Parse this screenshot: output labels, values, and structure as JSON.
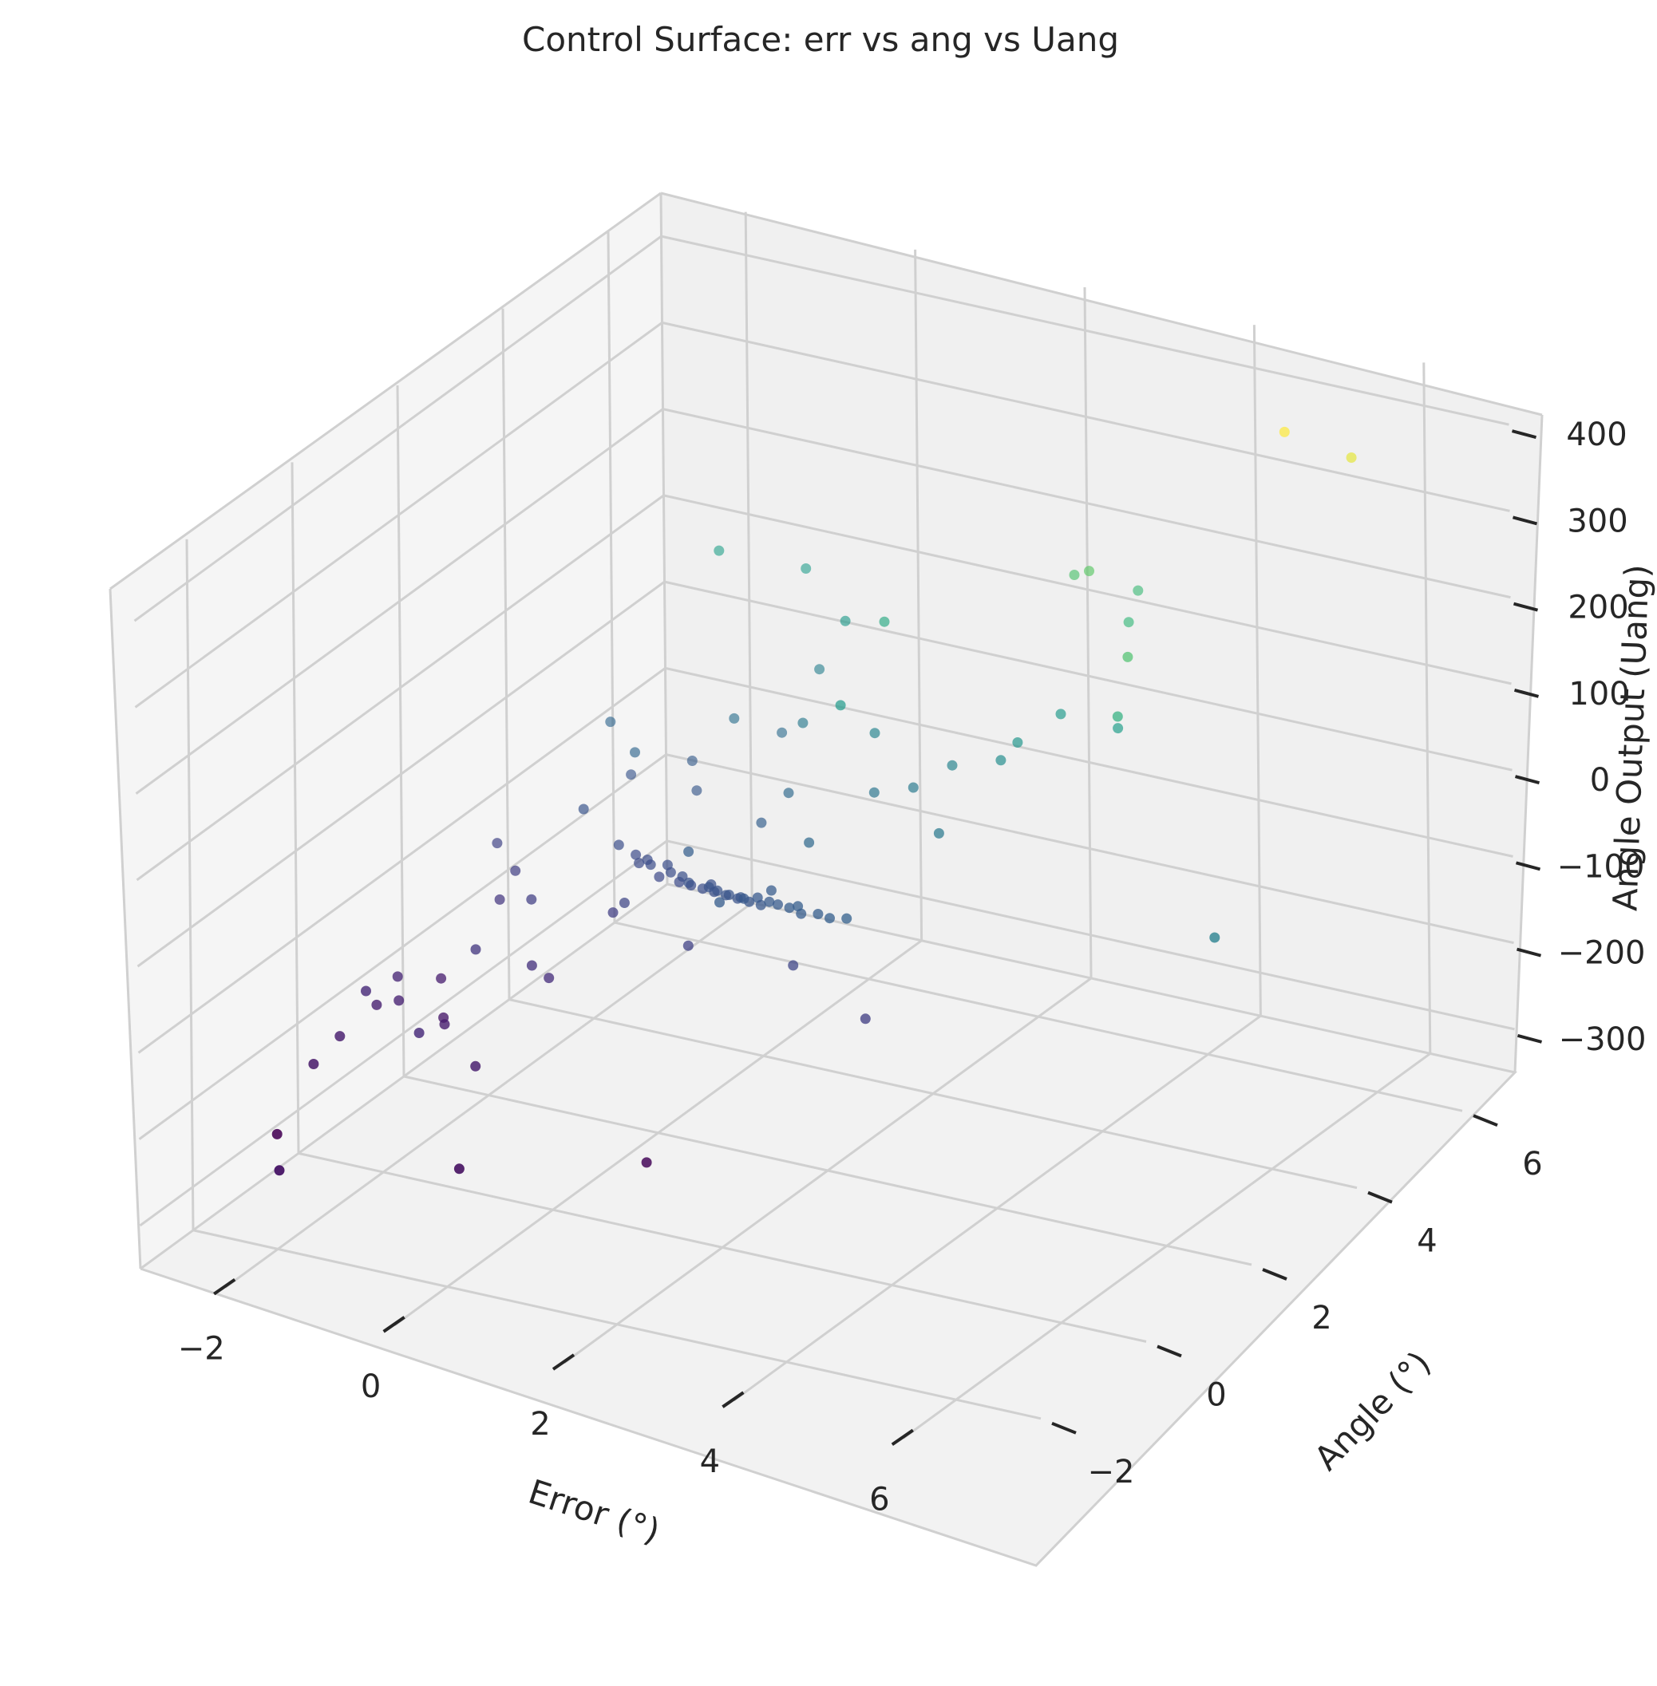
{
  "chart_data": {
    "type": "scatter3d",
    "title": "Control Surface: err vs ang vs Uang",
    "xlabel": "Error (°)",
    "ylabel": "Angle (°)",
    "zlabel": "Angle Output (Uang)",
    "xlim": [
      -3,
      7
    ],
    "ylim": [
      -3,
      7
    ],
    "zlim": [
      -350,
      450
    ],
    "x_ticks": [
      "−2",
      "0",
      "2",
      "4",
      "6"
    ],
    "y_ticks": [
      "−2",
      "0",
      "2",
      "4",
      "6"
    ],
    "z_ticks": [
      "−300",
      "−200",
      "−100",
      "0",
      "100",
      "200",
      "300",
      "400"
    ],
    "colormap": "viridis",
    "grid": true,
    "points": [
      {
        "x": 5.6,
        "y": 5.0,
        "z": 450
      },
      {
        "x": 6.2,
        "y": 5.3,
        "z": 420
      },
      {
        "x": 3.1,
        "y": 5.0,
        "z": 230
      },
      {
        "x": 3.4,
        "y": 4.8,
        "z": 250
      },
      {
        "x": 4.6,
        "y": 3.6,
        "z": 230
      },
      {
        "x": 3.6,
        "y": 5.4,
        "z": 205
      },
      {
        "x": 3.8,
        "y": 4.9,
        "z": 195
      },
      {
        "x": 4.6,
        "y": 3.4,
        "z": 170
      },
      {
        "x": 1.1,
        "y": 4.6,
        "z": 150
      },
      {
        "x": -1.6,
        "y": 5.8,
        "z": 120
      },
      {
        "x": 1.2,
        "y": 3.6,
        "z": 100
      },
      {
        "x": -0.7,
        "y": 6.0,
        "z": 110
      },
      {
        "x": 0.2,
        "y": 5.3,
        "z": 100
      },
      {
        "x": 4.1,
        "y": 4.2,
        "z": 110
      },
      {
        "x": 3.3,
        "y": 4.4,
        "z": 100
      },
      {
        "x": 3.1,
        "y": 3.9,
        "z": 85
      },
      {
        "x": 6.6,
        "y": 2.0,
        "z": 20
      },
      {
        "x": 2.9,
        "y": 3.9,
        "z": 60
      },
      {
        "x": 2.2,
        "y": 4.1,
        "z": 30
      },
      {
        "x": 1.1,
        "y": 4.4,
        "z": 30
      },
      {
        "x": -0.3,
        "y": 5.6,
        "z": 20
      },
      {
        "x": 0.0,
        "y": 4.8,
        "z": 0
      },
      {
        "x": 1.8,
        "y": 4.0,
        "z": 0
      },
      {
        "x": 2.6,
        "y": 3.2,
        "z": 0
      },
      {
        "x": 1.4,
        "y": 3.9,
        "z": -10
      },
      {
        "x": -1.0,
        "y": 5.1,
        "z": -30
      },
      {
        "x": 0.2,
        "y": 4.2,
        "z": -50
      },
      {
        "x": -0.5,
        "y": 5.2,
        "z": -40
      },
      {
        "x": 1.0,
        "y": 3.3,
        "z": -50
      },
      {
        "x": -1.5,
        "y": 5.1,
        "z": -90
      },
      {
        "x": 0.0,
        "y": 4.0,
        "z": -80
      },
      {
        "x": -1.8,
        "y": 4.5,
        "z": -60
      },
      {
        "x": -2.4,
        "y": 5.0,
        "z": -60
      },
      {
        "x": -2.1,
        "y": 4.9,
        "z": -110
      },
      {
        "x": -1.2,
        "y": 4.7,
        "z": -100
      },
      {
        "x": -0.3,
        "y": 3.1,
        "z": -80
      },
      {
        "x": 0.5,
        "y": 2.4,
        "z": -90
      },
      {
        "x": 1.3,
        "y": 2.5,
        "z": -150
      },
      {
        "x": 2.4,
        "y": 2.1,
        "z": -170
      },
      {
        "x": 0.0,
        "y": 2.6,
        "z": -160
      },
      {
        "x": -1.2,
        "y": 3.1,
        "z": -170
      },
      {
        "x": -2.1,
        "y": 4.0,
        "z": -110
      },
      {
        "x": -1.0,
        "y": 3.0,
        "z": -150
      },
      {
        "x": -2.6,
        "y": 3.5,
        "z": -170
      },
      {
        "x": -2.1,
        "y": 3.0,
        "z": -170
      },
      {
        "x": -3.0,
        "y": 3.8,
        "z": -160
      },
      {
        "x": -2.6,
        "y": 3.2,
        "z": -190
      },
      {
        "x": -1.6,
        "y": 2.2,
        "z": -200
      },
      {
        "x": -1.4,
        "y": 2.2,
        "z": -210
      },
      {
        "x": -2.2,
        "y": 2.1,
        "z": -190
      },
      {
        "x": -2.8,
        "y": 2.4,
        "z": -250
      },
      {
        "x": -2.4,
        "y": 1.8,
        "z": -260
      },
      {
        "x": -2.2,
        "y": 1.5,
        "z": -250
      },
      {
        "x": -3.0,
        "y": 1.9,
        "z": -230
      },
      {
        "x": -2.8,
        "y": 1.6,
        "z": -240
      },
      {
        "x": -3.0,
        "y": 1.5,
        "z": -245
      },
      {
        "x": -3.0,
        "y": 1.3,
        "z": -220
      },
      {
        "x": -2.0,
        "y": 0.7,
        "z": -220
      },
      {
        "x": -1.4,
        "y": 0.8,
        "z": -250
      },
      {
        "x": -3.0,
        "y": 0.3,
        "z": -260
      },
      {
        "x": -3.0,
        "y": 0.8,
        "z": -250
      },
      {
        "x": -3.0,
        "y": -0.4,
        "z": -310
      },
      {
        "x": -2.1,
        "y": -1.8,
        "z": -270
      },
      {
        "x": -0.6,
        "y": -0.8,
        "z": -280
      },
      {
        "x": 0.8,
        "y": 0.5,
        "z": -300
      },
      {
        "x": -1.5,
        "y": 3.7,
        "z": -125
      },
      {
        "x": -1.2,
        "y": 3.6,
        "z": -135
      },
      {
        "x": -0.9,
        "y": 3.5,
        "z": -140
      },
      {
        "x": -0.6,
        "y": 3.4,
        "z": -135
      },
      {
        "x": -0.4,
        "y": 3.3,
        "z": -130
      },
      {
        "x": -0.2,
        "y": 3.2,
        "z": -125
      },
      {
        "x": 0.0,
        "y": 3.1,
        "z": -120
      },
      {
        "x": 0.2,
        "y": 3.0,
        "z": -115
      },
      {
        "x": 0.4,
        "y": 2.9,
        "z": -110
      },
      {
        "x": 0.6,
        "y": 2.8,
        "z": -105
      },
      {
        "x": 0.8,
        "y": 2.7,
        "z": -100
      },
      {
        "x": 1.0,
        "y": 2.7,
        "z": -95
      },
      {
        "x": 1.2,
        "y": 2.6,
        "z": -90
      },
      {
        "x": -1.3,
        "y": 3.7,
        "z": -132
      },
      {
        "x": -1.0,
        "y": 3.5,
        "z": -128
      },
      {
        "x": -0.7,
        "y": 3.4,
        "z": -126
      },
      {
        "x": -0.5,
        "y": 3.3,
        "z": -122
      },
      {
        "x": -0.1,
        "y": 3.2,
        "z": -118
      },
      {
        "x": 0.1,
        "y": 3.0,
        "z": -112
      },
      {
        "x": 0.3,
        "y": 2.9,
        "z": -108
      },
      {
        "x": 0.5,
        "y": 2.8,
        "z": -102
      },
      {
        "x": 0.7,
        "y": 2.8,
        "z": -98
      },
      {
        "x": 0.9,
        "y": 2.7,
        "z": -94
      },
      {
        "x": 1.4,
        "y": 2.5,
        "z": -88
      },
      {
        "x": 1.6,
        "y": 2.5,
        "z": -84
      },
      {
        "x": 1.8,
        "y": 2.4,
        "z": -80
      },
      {
        "x": -1.1,
        "y": 3.6,
        "z": -129
      },
      {
        "x": -0.8,
        "y": 3.5,
        "z": -124
      },
      {
        "x": 0.0,
        "y": 3.0,
        "z": -110
      },
      {
        "x": 0.6,
        "y": 2.7,
        "z": -97
      },
      {
        "x": 1.3,
        "y": 2.6,
        "z": -86
      },
      {
        "x": -0.3,
        "y": 3.1,
        "z": -116
      },
      {
        "x": 2.0,
        "y": 2.4,
        "z": -76
      },
      {
        "x": 0.8,
        "y": 2.9,
        "z": -92
      }
    ]
  }
}
